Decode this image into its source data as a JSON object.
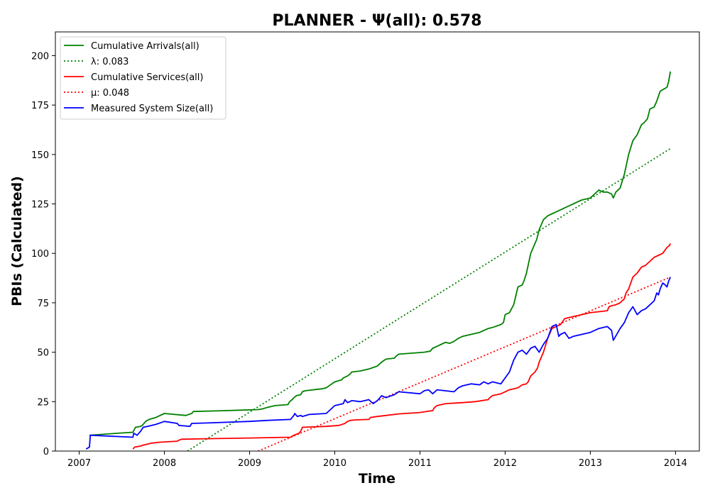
{
  "chart_data": {
    "type": "line",
    "title": "PLANNER -  Ψ(all): 0.578",
    "xlabel": "Time",
    "ylabel": "PBIs (Calculated)",
    "xlim": [
      2006.72,
      2014.28
    ],
    "ylim": [
      0,
      212
    ],
    "x_ticks": [
      2007,
      2008,
      2009,
      2010,
      2011,
      2012,
      2013,
      2014
    ],
    "x_tick_labels": [
      "2007",
      "2008",
      "2009",
      "2010",
      "2011",
      "2012",
      "2013",
      "2014"
    ],
    "y_ticks": [
      0,
      25,
      50,
      75,
      100,
      125,
      150,
      175,
      200
    ],
    "y_tick_labels": [
      "0",
      "25",
      "50",
      "75",
      "100",
      "125",
      "150",
      "175",
      "200"
    ],
    "grid": false,
    "legend_position": "top-left",
    "series": [
      {
        "name": "Cumulative Arrivals(all)",
        "color": "#008000",
        "style": "solid",
        "x": [
          2007.12,
          2007.45,
          2007.63,
          2007.66,
          2007.72,
          2007.74,
          2007.78,
          2007.82,
          2007.9,
          2008.0,
          2008.25,
          2008.32,
          2008.34,
          2008.6,
          2008.9,
          2009.1,
          2009.15,
          2009.2,
          2009.25,
          2009.3,
          2009.45,
          2009.47,
          2009.5,
          2009.52,
          2009.55,
          2009.6,
          2009.62,
          2009.65,
          2009.85,
          2009.9,
          2010.0,
          2010.08,
          2010.1,
          2010.15,
          2010.18,
          2010.2,
          2010.3,
          2010.4,
          2010.5,
          2010.55,
          2010.6,
          2010.7,
          2010.72,
          2010.75,
          2010.9,
          2011.05,
          2011.12,
          2011.15,
          2011.2,
          2011.25,
          2011.3,
          2011.35,
          2011.4,
          2011.45,
          2011.5,
          2011.6,
          2011.7,
          2011.75,
          2011.8,
          2011.85,
          2011.95,
          2011.98,
          2012.0,
          2012.05,
          2012.1,
          2012.15,
          2012.2,
          2012.22,
          2012.25,
          2012.3,
          2012.33,
          2012.37,
          2012.4,
          2012.45,
          2012.5,
          2012.55,
          2012.6,
          2012.65,
          2012.7,
          2012.75,
          2012.8,
          2012.85,
          2012.9,
          2013.0,
          2013.05,
          2013.1,
          2013.15,
          2013.2,
          2013.25,
          2013.27,
          2013.3,
          2013.35,
          2013.4,
          2013.45,
          2013.5,
          2013.55,
          2013.6,
          2013.63,
          2013.67,
          2013.7,
          2013.75,
          2013.78,
          2013.82,
          2013.86,
          2013.9,
          2013.92,
          2013.94
        ],
        "y": [
          8,
          9,
          9.5,
          12,
          12.5,
          13,
          15,
          16,
          17,
          19,
          18,
          19,
          20,
          20.3,
          20.7,
          21,
          21.3,
          22,
          22.5,
          23,
          23.5,
          25,
          26,
          27,
          28,
          28.5,
          30,
          30.5,
          31.5,
          32,
          35,
          36,
          37,
          38,
          39,
          40,
          40.5,
          41.5,
          43,
          45,
          46.5,
          47,
          48,
          49,
          49.5,
          50,
          50.5,
          52,
          53,
          54,
          55,
          54.5,
          55.5,
          57,
          58,
          59,
          60,
          61,
          62,
          62.5,
          64,
          65,
          69,
          70,
          74,
          83,
          84,
          86,
          90,
          100,
          103,
          107,
          112,
          117,
          119,
          120,
          121,
          122,
          123,
          124,
          125,
          126,
          127,
          128,
          130,
          132,
          131,
          131,
          130,
          128,
          131,
          133,
          140,
          150,
          157,
          160,
          165,
          166,
          168,
          173,
          174,
          177,
          182,
          183,
          184,
          187,
          192
        ]
      },
      {
        "name": "λ: 0.083",
        "color": "#008000",
        "style": "dotted",
        "x": [
          2008.27,
          2013.94
        ],
        "y": [
          0,
          153
        ]
      },
      {
        "name": "Cumulative Services(all)",
        "color": "#ff0000",
        "style": "solid",
        "x": [
          2007.63,
          2007.65,
          2007.72,
          2007.75,
          2007.8,
          2007.85,
          2007.95,
          2008.15,
          2008.17,
          2008.2,
          2008.6,
          2009.0,
          2009.48,
          2009.52,
          2009.58,
          2009.6,
          2009.62,
          2009.9,
          2010.05,
          2010.12,
          2010.15,
          2010.18,
          2010.25,
          2010.4,
          2010.42,
          2010.5,
          2010.6,
          2010.75,
          2011.0,
          2011.15,
          2011.17,
          2011.2,
          2011.3,
          2011.5,
          2011.65,
          2011.8,
          2011.82,
          2011.85,
          2011.95,
          2012.0,
          2012.05,
          2012.1,
          2012.15,
          2012.2,
          2012.25,
          2012.27,
          2012.3,
          2012.35,
          2012.38,
          2012.4,
          2012.45,
          2012.5,
          2012.55,
          2012.6,
          2012.65,
          2012.7,
          2012.75,
          2012.8,
          2012.9,
          2013.0,
          2013.1,
          2013.2,
          2013.22,
          2013.25,
          2013.3,
          2013.35,
          2013.4,
          2013.42,
          2013.45,
          2013.5,
          2013.55,
          2013.6,
          2013.65,
          2013.7,
          2013.75,
          2013.8,
          2013.85,
          2013.9,
          2013.93,
          2013.94
        ],
        "y": [
          1,
          2,
          2.5,
          3,
          3.5,
          4,
          4.5,
          5,
          5.5,
          6,
          6.3,
          6.6,
          7,
          8,
          9,
          10,
          12,
          12.5,
          13,
          14,
          15,
          15.5,
          15.8,
          16,
          17,
          17.5,
          18,
          18.8,
          19.5,
          20.5,
          22,
          23,
          24,
          24.5,
          25,
          26,
          27,
          28,
          29,
          30,
          31,
          31.5,
          32,
          33.5,
          34,
          35,
          38,
          40,
          42,
          45,
          50,
          57,
          62,
          63,
          64,
          67,
          67.5,
          68,
          69,
          70,
          70.5,
          71,
          73,
          73.5,
          74,
          75,
          77,
          80,
          82,
          88,
          90,
          93,
          94,
          96,
          98,
          99,
          100,
          103,
          104,
          105
        ]
      },
      {
        "name": "μ: 0.048",
        "color": "#ff0000",
        "style": "dotted",
        "x": [
          2009.1,
          2013.94
        ],
        "y": [
          0,
          88
        ]
      },
      {
        "name": "Measured System Size(all)",
        "color": "#0000ff",
        "style": "solid",
        "x": [
          2007.08,
          2007.12,
          2007.13,
          2007.63,
          2007.64,
          2007.68,
          2007.72,
          2007.75,
          2007.8,
          2007.9,
          2008.0,
          2008.15,
          2008.17,
          2008.3,
          2008.32,
          2008.5,
          2009.0,
          2009.2,
          2009.48,
          2009.52,
          2009.53,
          2009.56,
          2009.6,
          2009.62,
          2009.7,
          2009.9,
          2010.0,
          2010.1,
          2010.12,
          2010.15,
          2010.2,
          2010.3,
          2010.4,
          2010.45,
          2010.5,
          2010.55,
          2010.6,
          2010.7,
          2010.75,
          2011.0,
          2011.05,
          2011.1,
          2011.15,
          2011.2,
          2011.3,
          2011.4,
          2011.45,
          2011.5,
          2011.6,
          2011.7,
          2011.75,
          2011.8,
          2011.85,
          2011.95,
          2012.0,
          2012.05,
          2012.1,
          2012.15,
          2012.2,
          2012.25,
          2012.3,
          2012.35,
          2012.4,
          2012.45,
          2012.5,
          2012.55,
          2012.6,
          2012.63,
          2012.65,
          2012.7,
          2012.75,
          2012.8,
          2012.9,
          2013.0,
          2013.1,
          2013.2,
          2013.25,
          2013.27,
          2013.35,
          2013.4,
          2013.45,
          2013.5,
          2013.55,
          2013.6,
          2013.65,
          2013.7,
          2013.75,
          2013.78,
          2013.8,
          2013.82,
          2013.85,
          2013.88,
          2013.9,
          2013.92,
          2013.94
        ],
        "y": [
          1,
          2,
          8,
          7,
          9,
          8,
          10,
          12,
          12.5,
          13.5,
          15,
          14,
          13,
          12.5,
          14,
          14.2,
          15,
          15.5,
          16,
          18,
          19,
          17.5,
          18,
          17.5,
          18.5,
          19,
          23,
          24,
          26,
          24.5,
          25.5,
          25,
          26,
          24,
          25.5,
          28,
          27,
          28.5,
          30,
          29,
          30.5,
          31,
          29,
          31,
          30.5,
          30,
          32,
          33,
          34,
          33.5,
          35,
          34,
          35,
          34,
          37,
          40,
          46,
          50,
          51,
          49,
          52,
          53,
          50,
          54,
          57,
          63,
          64,
          58,
          59,
          60,
          57,
          58,
          59,
          60,
          62,
          63,
          61,
          56,
          62,
          65,
          70,
          73,
          69,
          71,
          72,
          74,
          76,
          80,
          79,
          82,
          85,
          84,
          83,
          86,
          88
        ]
      }
    ]
  }
}
